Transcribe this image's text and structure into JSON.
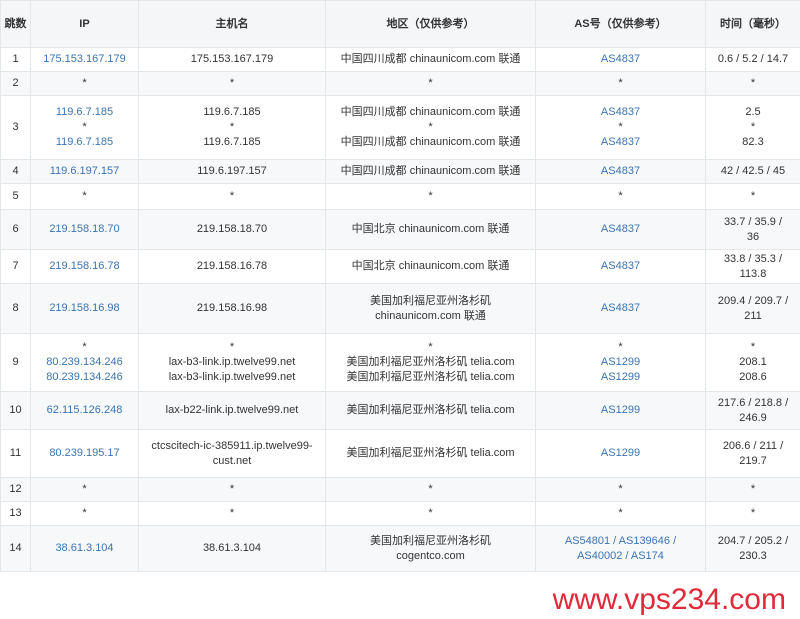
{
  "headers": [
    "跳数",
    "IP",
    "主机名",
    "地区（仅供参考）",
    "AS号（仅供参考）",
    "时间（毫秒）"
  ],
  "rows": [
    {
      "hop": "1",
      "ip": [
        "175.153.167.179"
      ],
      "host": [
        "175.153.167.179"
      ],
      "region": [
        "中国四川成都 chinaunicom.com 联通"
      ],
      "as": [
        "AS4837"
      ],
      "time": [
        "0.6 / 5.2 / 14.7"
      ]
    },
    {
      "hop": "2",
      "ip": [
        "*"
      ],
      "host": [
        "*"
      ],
      "region": [
        "*"
      ],
      "as": [
        "*"
      ],
      "time": [
        "*"
      ]
    },
    {
      "hop": "3",
      "ip": [
        "119.6.7.185",
        "*",
        "119.6.7.185"
      ],
      "host": [
        "119.6.7.185",
        "*",
        "119.6.7.185"
      ],
      "region": [
        "中国四川成都 chinaunicom.com 联通",
        "*",
        "中国四川成都 chinaunicom.com 联通"
      ],
      "as": [
        "AS4837",
        "*",
        "AS4837"
      ],
      "time": [
        "2.5",
        "*",
        "82.3"
      ]
    },
    {
      "hop": "4",
      "ip": [
        "119.6.197.157"
      ],
      "host": [
        "119.6.197.157"
      ],
      "region": [
        "中国四川成都 chinaunicom.com 联通"
      ],
      "as": [
        "AS4837"
      ],
      "time": [
        "42 / 42.5 / 45"
      ]
    },
    {
      "hop": "5",
      "ip": [
        "*"
      ],
      "host": [
        "*"
      ],
      "region": [
        "*"
      ],
      "as": [
        "*"
      ],
      "time": [
        "*"
      ]
    },
    {
      "hop": "6",
      "ip": [
        "219.158.18.70"
      ],
      "host": [
        "219.158.18.70"
      ],
      "region": [
        "中国北京 chinaunicom.com 联通"
      ],
      "as": [
        "AS4837"
      ],
      "time": [
        "33.7 / 35.9 /",
        "36"
      ]
    },
    {
      "hop": "7",
      "ip": [
        "219.158.16.78"
      ],
      "host": [
        "219.158.16.78"
      ],
      "region": [
        "中国北京 chinaunicom.com 联通"
      ],
      "as": [
        "AS4837"
      ],
      "time": [
        "33.8 / 35.3 /",
        "113.8"
      ]
    },
    {
      "hop": "8",
      "ip": [
        "219.158.16.98"
      ],
      "host": [
        "219.158.16.98"
      ],
      "region": [
        "美国加利福尼亚州洛杉矶",
        "chinaunicom.com 联通"
      ],
      "as": [
        "AS4837"
      ],
      "time": [
        "209.4 / 209.7 /",
        "211"
      ]
    },
    {
      "hop": "9",
      "ip": [
        "*",
        "80.239.134.246",
        "80.239.134.246"
      ],
      "host": [
        "*",
        "lax-b3-link.ip.twelve99.net",
        "lax-b3-link.ip.twelve99.net"
      ],
      "region": [
        "*",
        "美国加利福尼亚州洛杉矶 telia.com",
        "美国加利福尼亚州洛杉矶 telia.com"
      ],
      "as": [
        "*",
        "AS1299",
        "AS1299"
      ],
      "time": [
        "*",
        "208.1",
        "208.6"
      ]
    },
    {
      "hop": "10",
      "ip": [
        "62.115.126.248"
      ],
      "host": [
        "lax-b22-link.ip.twelve99.net"
      ],
      "region": [
        "美国加利福尼亚州洛杉矶 telia.com"
      ],
      "as": [
        "AS1299"
      ],
      "time": [
        "217.6 / 218.8 /",
        "246.9"
      ]
    },
    {
      "hop": "11",
      "ip": [
        "80.239.195.17"
      ],
      "host": [
        "ctcscitech-ic-385911.ip.twelve99-",
        "cust.net"
      ],
      "region": [
        "美国加利福尼亚州洛杉矶 telia.com"
      ],
      "as": [
        "AS1299"
      ],
      "time": [
        "206.6 / 211 /",
        "219.7"
      ]
    },
    {
      "hop": "12",
      "ip": [
        "*"
      ],
      "host": [
        "*"
      ],
      "region": [
        "*"
      ],
      "as": [
        "*"
      ],
      "time": [
        "*"
      ]
    },
    {
      "hop": "13",
      "ip": [
        "*"
      ],
      "host": [
        "*"
      ],
      "region": [
        "*"
      ],
      "as": [
        "*"
      ],
      "time": [
        "*"
      ]
    },
    {
      "hop": "14",
      "ip": [
        "38.61.3.104"
      ],
      "host": [
        "38.61.3.104"
      ],
      "region": [
        "美国加利福尼亚州洛杉矶",
        "cogentco.com"
      ],
      "as": [
        "AS54801 / AS139646 /",
        "AS40002 / AS174"
      ],
      "time": [
        "204.7 / 205.2 /",
        "230.3"
      ]
    }
  ],
  "watermark": "www.vps234.com",
  "colors": {
    "link": "#3a74b2",
    "watermark": "#e02a3a"
  }
}
